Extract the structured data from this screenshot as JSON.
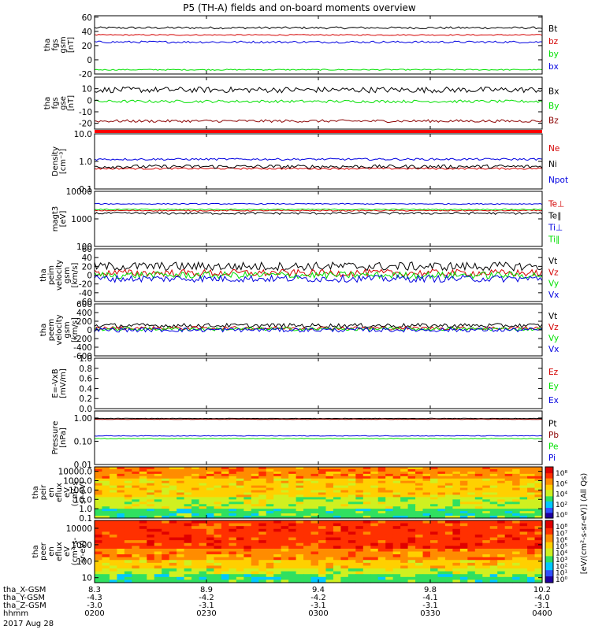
{
  "title": "P5 (TH-A) fields and on-board moments overview",
  "colors": {
    "black": "#000000",
    "red": "#d40000",
    "green": "#00e000",
    "blue": "#0000e0",
    "darkred": "#8b0000",
    "brightred": "#ff0000"
  },
  "time_axis": {
    "ticks": [
      "0200",
      "0230",
      "0300",
      "0330",
      "0400"
    ],
    "ephemeris": [
      {
        "label": "tha_X-GSM",
        "values": [
          "8.3",
          "8.9",
          "9.4",
          "9.8",
          "10.2"
        ]
      },
      {
        "label": "tha_Y-GSM",
        "values": [
          "-4.3",
          "-4.2",
          "-4.2",
          "-4.1",
          "-4.0"
        ]
      },
      {
        "label": "tha_Z-GSM",
        "values": [
          "-3.0",
          "-3.1",
          "-3.1",
          "-3.1",
          "-3.1"
        ]
      },
      {
        "label": "hhmm",
        "values": [
          "0200",
          "0230",
          "0300",
          "0330",
          "0400"
        ]
      }
    ],
    "date": "2017 Aug 28"
  },
  "colorbar": {
    "label": "[eV/(cm²-s-sr-eV)] (All Qs)",
    "ticks_top": [
      "10⁸",
      "10⁶",
      "10⁴",
      "10²",
      "10⁰"
    ],
    "ticks_bottom": [
      "10⁸",
      "10⁷",
      "10⁶",
      "10⁵",
      "10⁴",
      "10³",
      "10²",
      "10¹",
      "10⁰"
    ]
  },
  "chart_data": [
    {
      "type": "line",
      "ylabel": [
        "tha",
        "fgs",
        "gsm",
        "[nT]"
      ],
      "ylim": [
        -20,
        62
      ],
      "ticks": [
        "60",
        "40",
        "20",
        "0",
        "-20"
      ],
      "tick_values": [
        60,
        40,
        20,
        0,
        -20
      ],
      "log": false,
      "series": [
        {
          "name": "Bt",
          "color": "black",
          "base": 45,
          "noise": 1.5
        },
        {
          "name": "bz",
          "color": "red",
          "base": 35,
          "noise": 0.8
        },
        {
          "name": "by",
          "color": "green",
          "base": -14,
          "noise": 0.8
        },
        {
          "name": "bx",
          "color": "blue",
          "base": 25,
          "noise": 1.5
        }
      ]
    },
    {
      "type": "line",
      "ylabel": [
        "tha",
        "fgs",
        "gse",
        "[nT]"
      ],
      "ylim": [
        -25,
        20
      ],
      "ticks": [
        "10",
        "0",
        "-10",
        "-20"
      ],
      "tick_values": [
        10,
        0,
        -10,
        -20
      ],
      "log": false,
      "series": [
        {
          "name": "Bx",
          "color": "black",
          "base": 9,
          "noise": 2.5
        },
        {
          "name": "By",
          "color": "green",
          "base": -1,
          "noise": 1.2
        },
        {
          "name": "Bz",
          "color": "darkred",
          "base": -18,
          "noise": 1.2
        }
      ]
    },
    {
      "type": "line",
      "ylabel": [
        "Density",
        "[cm⁻³]"
      ],
      "ylim": [
        0.1,
        10.0
      ],
      "ticks": [
        "10.0",
        "1.0",
        "0.1"
      ],
      "tick_values": [
        10.0,
        1.0,
        0.1
      ],
      "log": true,
      "series": [
        {
          "name": "Ne",
          "color": "red",
          "base": 0.55,
          "noise": 0.04
        },
        {
          "name": "Ni",
          "color": "black",
          "base": 0.65,
          "noise": 0.1
        },
        {
          "name": "Npot",
          "color": "blue",
          "base": 1.2,
          "noise": 0.1
        }
      ]
    },
    {
      "type": "line",
      "ylabel": [
        "magt3",
        "[eV]"
      ],
      "ylim": [
        100,
        10000
      ],
      "ticks": [
        "10000",
        "1000",
        "100"
      ],
      "tick_values": [
        10000,
        1000,
        100
      ],
      "log": true,
      "series": [
        {
          "name": "Te⊥",
          "color": "red",
          "base": 2000,
          "noise": 100
        },
        {
          "name": "Te∥",
          "color": "black",
          "base": 1600,
          "noise": 150
        },
        {
          "name": "Ti⊥",
          "color": "blue",
          "base": 3500,
          "noise": 150
        },
        {
          "name": "Ti∥",
          "color": "green",
          "base": 2200,
          "noise": 100
        }
      ]
    },
    {
      "type": "line",
      "ylabel": [
        "tha",
        "peim",
        "velocity",
        "gsm",
        "[km/s]"
      ],
      "ylim": [
        -60,
        60
      ],
      "ticks": [
        "60",
        "40",
        "20",
        "0",
        "-20",
        "-40",
        "-60"
      ],
      "tick_values": [
        60,
        40,
        20,
        0,
        -20,
        -40,
        -60
      ],
      "log": false,
      "series": [
        {
          "name": "Vt",
          "color": "black",
          "base": 20,
          "noise": 10
        },
        {
          "name": "Vz",
          "color": "red",
          "base": 5,
          "noise": 8
        },
        {
          "name": "Vy",
          "color": "green",
          "base": 0,
          "noise": 8
        },
        {
          "name": "Vx",
          "color": "blue",
          "base": -8,
          "noise": 8
        }
      ]
    },
    {
      "type": "line",
      "ylabel": [
        "tha",
        "peem",
        "velocity",
        "gsm",
        "[km/s]"
      ],
      "ylim": [
        -600,
        600
      ],
      "ticks": [
        "600",
        "400",
        "200",
        "0",
        "-200",
        "-400",
        "-600"
      ],
      "tick_values": [
        600,
        400,
        200,
        0,
        -200,
        -400,
        -600
      ],
      "log": false,
      "series": [
        {
          "name": "Vt",
          "color": "black",
          "base": 100,
          "noise": 50
        },
        {
          "name": "Vz",
          "color": "red",
          "base": 40,
          "noise": 40
        },
        {
          "name": "Vy",
          "color": "green",
          "base": 20,
          "noise": 40
        },
        {
          "name": "Vx",
          "color": "blue",
          "base": 0,
          "noise": 50
        }
      ]
    },
    {
      "type": "line",
      "ylabel": [
        "E=-VxB",
        "[mV/m]"
      ],
      "ylim": [
        0,
        1
      ],
      "ticks": [
        "1.0",
        "0.8",
        "0.6",
        "0.4",
        "0.2",
        "0.0"
      ],
      "tick_values": [
        1.0,
        0.8,
        0.6,
        0.4,
        0.2,
        0.0
      ],
      "log": false,
      "series": [
        {
          "name": "Ez",
          "color": "red",
          "empty": true
        },
        {
          "name": "Ey",
          "color": "green",
          "empty": true
        },
        {
          "name": "Ex",
          "color": "blue",
          "empty": true
        }
      ]
    },
    {
      "type": "line",
      "ylabel": [
        "Pressure",
        "[nPa]"
      ],
      "ylim": [
        0.01,
        2
      ],
      "ticks": [
        "1.00",
        "0.10",
        "0.01"
      ],
      "tick_values": [
        1.0,
        0.1,
        0.01
      ],
      "log": true,
      "series": [
        {
          "name": "Pt",
          "color": "black",
          "base": 0.95,
          "noise": 0.02
        },
        {
          "name": "Pb",
          "color": "darkred",
          "base": 0.88,
          "noise": 0.02
        },
        {
          "name": "Pe",
          "color": "green",
          "base": 0.13,
          "noise": 0.005
        },
        {
          "name": "Pi",
          "color": "blue",
          "base": 0.17,
          "noise": 0.005
        }
      ]
    },
    {
      "type": "heatmap",
      "ylabel": [
        "tha",
        "peir",
        "en",
        "eflux",
        "eV",
        "(cm²-s-",
        "sr-eV)"
      ],
      "ylim": [
        0.1,
        30000
      ],
      "ticks": [
        "10000.0",
        "1000.0",
        "100.0",
        "10.0",
        "1.0",
        "0.1"
      ],
      "tick_values": [
        10000,
        1000,
        100,
        10,
        1,
        0.1
      ],
      "log": true
    },
    {
      "type": "heatmap",
      "ylabel": [
        "tha",
        "peer",
        "en",
        "eflux",
        "eV",
        "(cm²-s-",
        "sr-eV)"
      ],
      "ylim": [
        5,
        30000
      ],
      "ticks": [
        "10000",
        "1000",
        "100",
        "10"
      ],
      "tick_values": [
        10000,
        1000,
        100,
        10
      ],
      "log": true
    }
  ]
}
